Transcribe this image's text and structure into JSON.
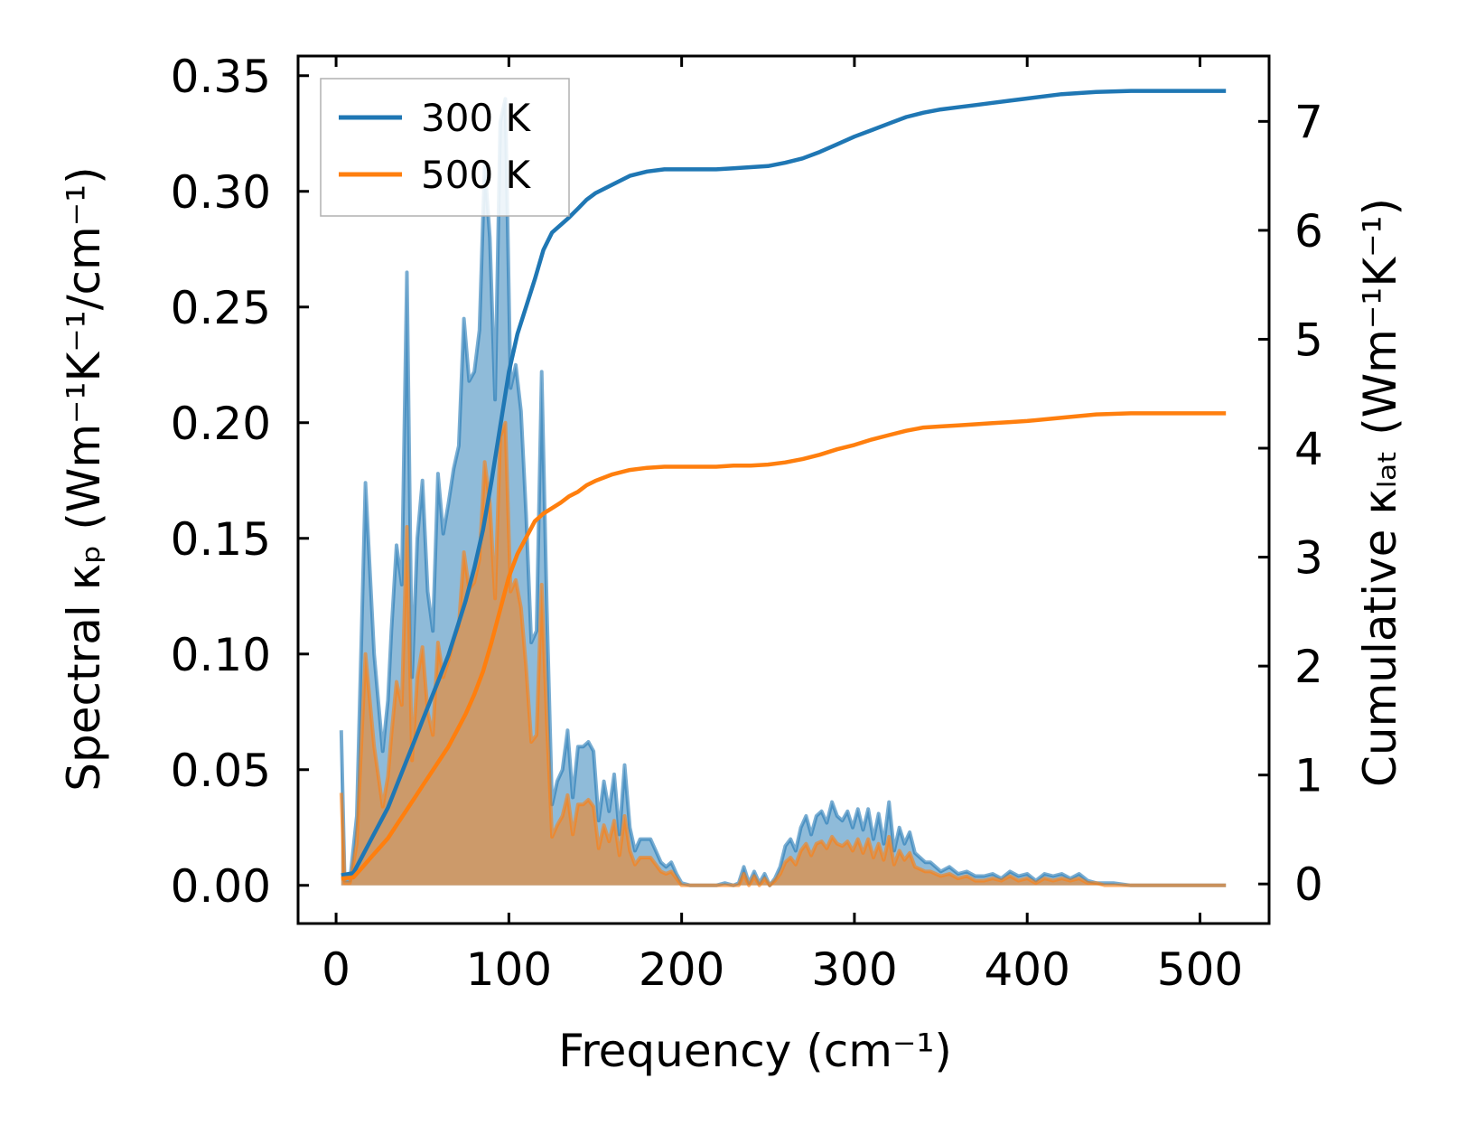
{
  "chart_data": {
    "type": "line",
    "title": "",
    "xlabel": "Frequency (cm⁻¹)",
    "ylabel_left": "Spectral κₚ (Wm⁻¹K⁻¹/cm⁻¹)",
    "ylabel_right": "Cumulative κₗₐₜ (Wm⁻¹K⁻¹)",
    "xlim": [
      -22,
      540
    ],
    "ylim_left": [
      -0.0165,
      0.3585
    ],
    "ylim_right": [
      -0.363,
      7.6
    ],
    "x_ticks": [
      0,
      100,
      200,
      300,
      400,
      500
    ],
    "x_tick_labels": [
      "0",
      "100",
      "200",
      "300",
      "400",
      "500"
    ],
    "y_left_ticks": [
      0,
      0.05,
      0.1,
      0.15,
      0.2,
      0.25,
      0.3,
      0.35
    ],
    "y_left_tick_labels": [
      "0.00",
      "0.05",
      "0.10",
      "0.15",
      "0.20",
      "0.25",
      "0.30",
      "0.35"
    ],
    "y_right_ticks": [
      0,
      1,
      2,
      3,
      4,
      5,
      6,
      7
    ],
    "y_right_tick_labels": [
      "0",
      "1",
      "2",
      "3",
      "4",
      "5",
      "6",
      "7"
    ],
    "grid": false,
    "legend_position": "top-left",
    "series": [
      {
        "name": "300 K",
        "color": "#1f77b4",
        "fill_color": "#1f77b4",
        "spectral": {
          "x": [
            3,
            5,
            8,
            12,
            17,
            22,
            27,
            30,
            32,
            35,
            38,
            41,
            44,
            47,
            50,
            53,
            56,
            59,
            62,
            65,
            68,
            71,
            74,
            77,
            80,
            83,
            86,
            89,
            92,
            95,
            98,
            101,
            104,
            107,
            110,
            113,
            116,
            119,
            122,
            125,
            128,
            131,
            134,
            137,
            140,
            143,
            146,
            149,
            152,
            155,
            158,
            161,
            164,
            167,
            170,
            173,
            176,
            179,
            182,
            185,
            188,
            191,
            194,
            197,
            200,
            205,
            210,
            215,
            220,
            225,
            230,
            233,
            236,
            239,
            242,
            245,
            248,
            251,
            254,
            257,
            260,
            263,
            266,
            269,
            272,
            275,
            278,
            281,
            284,
            287,
            290,
            293,
            296,
            299,
            302,
            305,
            308,
            311,
            314,
            317,
            320,
            323,
            326,
            329,
            332,
            335,
            338,
            341,
            344,
            347,
            350,
            355,
            360,
            365,
            370,
            375,
            380,
            385,
            390,
            395,
            400,
            405,
            410,
            415,
            420,
            425,
            430,
            435,
            440,
            445,
            450,
            460,
            470,
            480,
            490,
            500,
            515
          ],
          "y": [
            0.067,
            0.002,
            0.002,
            0.03,
            0.174,
            0.1,
            0.058,
            0.08,
            0.11,
            0.147,
            0.13,
            0.265,
            0.09,
            0.15,
            0.175,
            0.127,
            0.11,
            0.178,
            0.152,
            0.165,
            0.18,
            0.19,
            0.245,
            0.218,
            0.222,
            0.24,
            0.312,
            0.28,
            0.21,
            0.33,
            0.34,
            0.215,
            0.225,
            0.205,
            0.16,
            0.105,
            0.11,
            0.222,
            0.12,
            0.035,
            0.045,
            0.05,
            0.067,
            0.038,
            0.06,
            0.06,
            0.062,
            0.058,
            0.028,
            0.045,
            0.032,
            0.048,
            0.022,
            0.052,
            0.025,
            0.015,
            0.02,
            0.02,
            0.02,
            0.015,
            0.01,
            0.008,
            0.01,
            0.005,
            0.001,
            0.0,
            0.0,
            0.0,
            0.0,
            0.001,
            0.0,
            0.001,
            0.008,
            0.001,
            0.006,
            0.001,
            0.005,
            0.0,
            0.003,
            0.008,
            0.017,
            0.02,
            0.015,
            0.025,
            0.03,
            0.022,
            0.03,
            0.032,
            0.027,
            0.036,
            0.03,
            0.028,
            0.032,
            0.025,
            0.033,
            0.024,
            0.033,
            0.02,
            0.031,
            0.018,
            0.036,
            0.015,
            0.025,
            0.018,
            0.023,
            0.014,
            0.012,
            0.01,
            0.01,
            0.008,
            0.006,
            0.008,
            0.005,
            0.006,
            0.004,
            0.004,
            0.005,
            0.003,
            0.006,
            0.004,
            0.005,
            0.002,
            0.005,
            0.004,
            0.005,
            0.003,
            0.005,
            0.002,
            0.001,
            0.001,
            0.001,
            0.0,
            0.0,
            0.0,
            0.0,
            0.0,
            0.0
          ]
        },
        "cumulative": {
          "x": [
            3,
            10,
            15,
            20,
            25,
            30,
            35,
            40,
            45,
            50,
            55,
            60,
            65,
            70,
            75,
            80,
            85,
            90,
            95,
            100,
            105,
            110,
            115,
            120,
            125,
            130,
            135,
            140,
            145,
            150,
            160,
            170,
            180,
            190,
            200,
            210,
            220,
            230,
            240,
            250,
            260,
            270,
            280,
            290,
            300,
            310,
            320,
            330,
            340,
            350,
            360,
            370,
            380,
            390,
            400,
            420,
            440,
            460,
            480,
            500,
            515
          ],
          "y": [
            0.08,
            0.1,
            0.25,
            0.4,
            0.55,
            0.7,
            0.9,
            1.1,
            1.3,
            1.5,
            1.7,
            1.9,
            2.1,
            2.35,
            2.6,
            2.9,
            3.25,
            3.7,
            4.2,
            4.7,
            5.05,
            5.3,
            5.55,
            5.82,
            5.98,
            6.05,
            6.12,
            6.2,
            6.28,
            6.34,
            6.42,
            6.5,
            6.54,
            6.56,
            6.56,
            6.56,
            6.56,
            6.57,
            6.58,
            6.59,
            6.62,
            6.66,
            6.72,
            6.79,
            6.86,
            6.92,
            6.98,
            7.04,
            7.08,
            7.11,
            7.13,
            7.15,
            7.17,
            7.19,
            7.21,
            7.25,
            7.27,
            7.28,
            7.28,
            7.28,
            7.28
          ]
        }
      },
      {
        "name": "500 K",
        "color": "#ff7f0e",
        "fill_color": "#ff7f0e",
        "spectral": {
          "x": [
            3,
            5,
            8,
            12,
            17,
            22,
            27,
            30,
            32,
            35,
            38,
            41,
            44,
            47,
            50,
            53,
            56,
            59,
            62,
            65,
            68,
            71,
            74,
            77,
            80,
            83,
            86,
            89,
            92,
            95,
            98,
            101,
            104,
            107,
            110,
            113,
            116,
            119,
            122,
            125,
            128,
            131,
            134,
            137,
            140,
            143,
            146,
            149,
            152,
            155,
            158,
            161,
            164,
            167,
            170,
            173,
            176,
            179,
            182,
            185,
            188,
            191,
            194,
            197,
            200,
            205,
            210,
            215,
            220,
            225,
            230,
            233,
            236,
            239,
            242,
            245,
            248,
            251,
            254,
            257,
            260,
            263,
            266,
            269,
            272,
            275,
            278,
            281,
            284,
            287,
            290,
            293,
            296,
            299,
            302,
            305,
            308,
            311,
            314,
            317,
            320,
            323,
            326,
            329,
            332,
            335,
            338,
            341,
            344,
            347,
            350,
            355,
            360,
            365,
            370,
            375,
            380,
            385,
            390,
            395,
            400,
            405,
            410,
            415,
            420,
            425,
            430,
            435,
            440,
            445,
            450,
            460,
            470,
            480,
            490,
            500,
            515
          ],
          "y": [
            0.04,
            0.001,
            0.001,
            0.018,
            0.1,
            0.06,
            0.034,
            0.047,
            0.065,
            0.088,
            0.078,
            0.155,
            0.054,
            0.09,
            0.103,
            0.075,
            0.065,
            0.105,
            0.09,
            0.097,
            0.106,
            0.112,
            0.144,
            0.128,
            0.131,
            0.141,
            0.183,
            0.165,
            0.124,
            0.194,
            0.2,
            0.127,
            0.132,
            0.12,
            0.094,
            0.062,
            0.065,
            0.13,
            0.07,
            0.021,
            0.026,
            0.03,
            0.039,
            0.022,
            0.035,
            0.035,
            0.037,
            0.034,
            0.016,
            0.026,
            0.019,
            0.028,
            0.013,
            0.03,
            0.015,
            0.009,
            0.012,
            0.012,
            0.012,
            0.009,
            0.006,
            0.005,
            0.006,
            0.003,
            0.0,
            0.0,
            0.0,
            0.0,
            0.0,
            0.0,
            0.0,
            0.0,
            0.005,
            0.0,
            0.004,
            0.0,
            0.003,
            0.0,
            0.002,
            0.005,
            0.01,
            0.012,
            0.009,
            0.015,
            0.018,
            0.013,
            0.018,
            0.019,
            0.016,
            0.021,
            0.018,
            0.017,
            0.019,
            0.015,
            0.02,
            0.014,
            0.02,
            0.012,
            0.018,
            0.011,
            0.021,
            0.009,
            0.015,
            0.011,
            0.014,
            0.008,
            0.007,
            0.006,
            0.006,
            0.005,
            0.004,
            0.005,
            0.003,
            0.004,
            0.002,
            0.002,
            0.003,
            0.002,
            0.004,
            0.002,
            0.003,
            0.001,
            0.003,
            0.002,
            0.003,
            0.002,
            0.003,
            0.001,
            0.001,
            0.0,
            0.0,
            0.0,
            0.0,
            0.0,
            0.0,
            0.0,
            0.0
          ]
        },
        "cumulative": {
          "x": [
            3,
            10,
            15,
            20,
            25,
            30,
            35,
            40,
            45,
            50,
            55,
            60,
            65,
            70,
            75,
            80,
            85,
            90,
            95,
            100,
            105,
            110,
            115,
            120,
            125,
            130,
            135,
            140,
            145,
            150,
            160,
            170,
            180,
            190,
            200,
            210,
            220,
            230,
            240,
            250,
            260,
            270,
            280,
            290,
            300,
            310,
            320,
            330,
            340,
            350,
            360,
            370,
            380,
            390,
            400,
            420,
            440,
            460,
            480,
            500,
            515
          ],
          "y": [
            0.05,
            0.06,
            0.15,
            0.24,
            0.33,
            0.42,
            0.54,
            0.66,
            0.78,
            0.9,
            1.02,
            1.14,
            1.26,
            1.41,
            1.56,
            1.74,
            1.95,
            2.22,
            2.52,
            2.82,
            3.03,
            3.18,
            3.33,
            3.4,
            3.45,
            3.5,
            3.56,
            3.6,
            3.66,
            3.7,
            3.76,
            3.8,
            3.82,
            3.83,
            3.83,
            3.83,
            3.83,
            3.84,
            3.84,
            3.85,
            3.87,
            3.9,
            3.94,
            3.99,
            4.03,
            4.08,
            4.12,
            4.16,
            4.19,
            4.2,
            4.21,
            4.22,
            4.23,
            4.24,
            4.25,
            4.28,
            4.31,
            4.32,
            4.32,
            4.32,
            4.32
          ]
        }
      }
    ]
  }
}
